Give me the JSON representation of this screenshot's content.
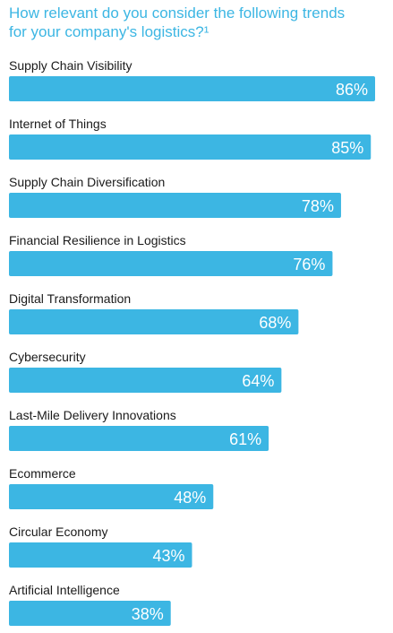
{
  "chart_data": {
    "type": "bar",
    "orientation": "horizontal",
    "title": "How relevant do you consider the following trends\nfor your company's logistics?¹",
    "categories": [
      "Supply Chain Visibility",
      "Internet of Things",
      "Supply Chain Diversification",
      "Financial Resilience in Logistics",
      "Digital Transformation",
      "Cybersecurity",
      "Last-Mile Delivery Innovations",
      "Ecommerce",
      "Circular Economy",
      "Artificial Intelligence"
    ],
    "values": [
      86,
      85,
      78,
      76,
      68,
      64,
      61,
      48,
      43,
      38
    ],
    "value_labels": [
      "86%",
      "85%",
      "78%",
      "76%",
      "68%",
      "64%",
      "61%",
      "48%",
      "43%",
      "38%"
    ],
    "unit": "%",
    "bar_color": "#3cb6e3",
    "title_color": "#3cb6e3",
    "label_color": "#1a1a1a",
    "value_label_color": "#ffffff",
    "grid": false,
    "legend": "none"
  }
}
